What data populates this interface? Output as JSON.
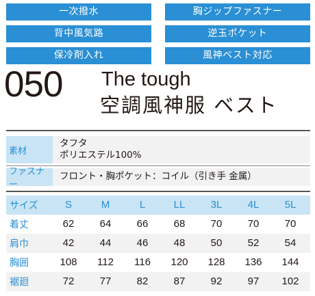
{
  "features": [
    "一次撥水",
    "胸ジップファスナー",
    "背中風気路",
    "逆玉ポケット",
    "保冷剤入れ",
    "風神ベスト対応"
  ],
  "model_number": "050",
  "title_en": "The tough",
  "title_jp": "空調風神服 ベスト",
  "specs": {
    "material_label": "素材",
    "material_values": [
      "タフタ",
      "ポリエステル100%"
    ],
    "fastener_label": "ファスナー",
    "fastener_value": "フロント・胸ポケット：コイル（引き手 金属）"
  },
  "size_table": {
    "header_label": "サイズ",
    "sizes": [
      "S",
      "M",
      "L",
      "LL",
      "3L",
      "4L",
      "5L"
    ],
    "rows": [
      {
        "label": "着丈",
        "values": [
          "62",
          "64",
          "66",
          "68",
          "70",
          "70",
          "70"
        ]
      },
      {
        "label": "肩巾",
        "values": [
          "42",
          "44",
          "46",
          "48",
          "50",
          "52",
          "54"
        ]
      },
      {
        "label": "胸囲",
        "values": [
          "108",
          "112",
          "116",
          "120",
          "128",
          "136",
          "144"
        ]
      },
      {
        "label": "裾廻",
        "values": [
          "72",
          "77",
          "82",
          "87",
          "92",
          "97",
          "102"
        ]
      }
    ]
  },
  "colors": {
    "accent": "#2a8fd4",
    "label_bg": "#c9e4f5",
    "row_alt": "#f2f2f2"
  }
}
